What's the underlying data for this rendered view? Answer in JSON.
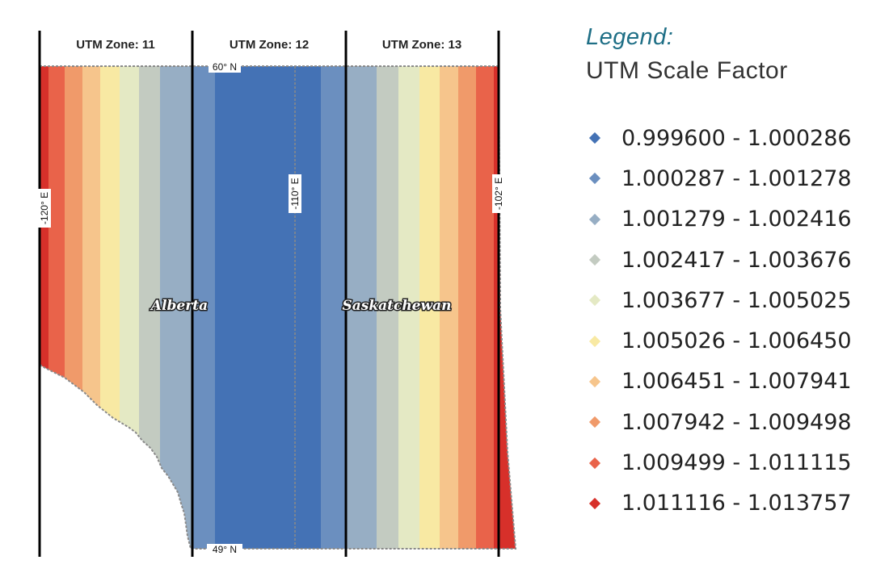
{
  "map": {
    "zone_labels": [
      "UTM Zone: 11",
      "UTM Zone: 12",
      "UTM Zone: 13"
    ],
    "parallels": {
      "north": "60° N",
      "south": "49° N"
    },
    "meridians": [
      "-120° E",
      "-110° E",
      "-102° E"
    ],
    "provinces": [
      "Alberta",
      "Saskatchewan"
    ]
  },
  "legend": {
    "title": "Legend:",
    "subtitle": "UTM Scale Factor",
    "items": [
      {
        "label": "0.999600 - 1.000286",
        "color": "#4472b5"
      },
      {
        "label": "1.000287 - 1.001278",
        "color": "#6b8fbf"
      },
      {
        "label": "1.001279 - 1.002416",
        "color": "#97aec4"
      },
      {
        "label": "1.002417 - 1.003676",
        "color": "#c3cbc1"
      },
      {
        "label": "1.003677 - 1.005025",
        "color": "#e4e9c4"
      },
      {
        "label": "1.005026 - 1.006450",
        "color": "#f8e9a3"
      },
      {
        "label": "1.006451 - 1.007941",
        "color": "#f6c58c"
      },
      {
        "label": "1.007942 - 1.009498",
        "color": "#f09a6a"
      },
      {
        "label": "1.009499 - 1.011115",
        "color": "#e9634a"
      },
      {
        "label": "1.011116 - 1.013757",
        "color": "#d7302a"
      }
    ]
  }
}
